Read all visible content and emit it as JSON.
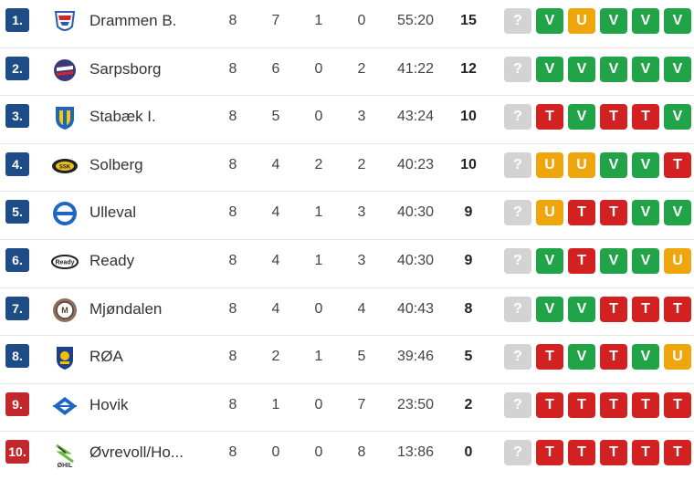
{
  "colors": {
    "rank_blue": "#1d4c86",
    "rank_red": "#c1272d",
    "win": "#21a348",
    "draw": "#efa60d",
    "loss": "#d32020",
    "next": "#d3d3d3"
  },
  "rows": [
    {
      "rank": "1.",
      "rank_color": "blue",
      "logo": "drammen-crest-icon",
      "team": "Drammen B.",
      "played": "8",
      "won": "7",
      "drawn": "1",
      "lost": "0",
      "score": "55:20",
      "points": "15",
      "form": [
        "?",
        "V",
        "U",
        "V",
        "V",
        "V"
      ]
    },
    {
      "rank": "2.",
      "rank_color": "blue",
      "logo": "sarpsborg-crest-icon",
      "team": "Sarpsborg",
      "played": "8",
      "won": "6",
      "drawn": "0",
      "lost": "2",
      "score": "41:22",
      "points": "12",
      "form": [
        "?",
        "V",
        "V",
        "V",
        "V",
        "V"
      ]
    },
    {
      "rank": "3.",
      "rank_color": "blue",
      "logo": "stabaek-crest-icon",
      "team": "Stabæk I.",
      "played": "8",
      "won": "5",
      "drawn": "0",
      "lost": "3",
      "score": "43:24",
      "points": "10",
      "form": [
        "?",
        "T",
        "V",
        "T",
        "T",
        "V"
      ]
    },
    {
      "rank": "4.",
      "rank_color": "blue",
      "logo": "solberg-crest-icon",
      "team": "Solberg",
      "played": "8",
      "won": "4",
      "drawn": "2",
      "lost": "2",
      "score": "40:23",
      "points": "10",
      "form": [
        "?",
        "U",
        "U",
        "V",
        "V",
        "T"
      ]
    },
    {
      "rank": "5.",
      "rank_color": "blue",
      "logo": "ulleval-crest-icon",
      "team": "Ulleval",
      "played": "8",
      "won": "4",
      "drawn": "1",
      "lost": "3",
      "score": "40:30",
      "points": "9",
      "form": [
        "?",
        "U",
        "T",
        "T",
        "V",
        "V"
      ]
    },
    {
      "rank": "6.",
      "rank_color": "blue",
      "logo": "ready-crest-icon",
      "team": "Ready",
      "played": "8",
      "won": "4",
      "drawn": "1",
      "lost": "3",
      "score": "40:30",
      "points": "9",
      "form": [
        "?",
        "V",
        "T",
        "V",
        "V",
        "U"
      ]
    },
    {
      "rank": "7.",
      "rank_color": "blue",
      "logo": "mjondalen-crest-icon",
      "team": "Mjøndalen",
      "played": "8",
      "won": "4",
      "drawn": "0",
      "lost": "4",
      "score": "40:43",
      "points": "8",
      "form": [
        "?",
        "V",
        "V",
        "T",
        "T",
        "T"
      ]
    },
    {
      "rank": "8.",
      "rank_color": "blue",
      "logo": "roa-crest-icon",
      "team": "RØA",
      "played": "8",
      "won": "2",
      "drawn": "1",
      "lost": "5",
      "score": "39:46",
      "points": "5",
      "form": [
        "?",
        "T",
        "V",
        "T",
        "V",
        "U"
      ]
    },
    {
      "rank": "9.",
      "rank_color": "red",
      "logo": "hovik-crest-icon",
      "team": "Hovik",
      "played": "8",
      "won": "1",
      "drawn": "0",
      "lost": "7",
      "score": "23:50",
      "points": "2",
      "form": [
        "?",
        "T",
        "T",
        "T",
        "T",
        "T"
      ]
    },
    {
      "rank": "10.",
      "rank_color": "red",
      "logo": "ovrevoll-crest-icon",
      "team": "Øvrevoll/Ho...",
      "played": "8",
      "won": "0",
      "drawn": "0",
      "lost": "8",
      "score": "13:86",
      "points": "0",
      "form": [
        "?",
        "T",
        "T",
        "T",
        "T",
        "T"
      ],
      "logo_text": "ØHIL"
    }
  ]
}
